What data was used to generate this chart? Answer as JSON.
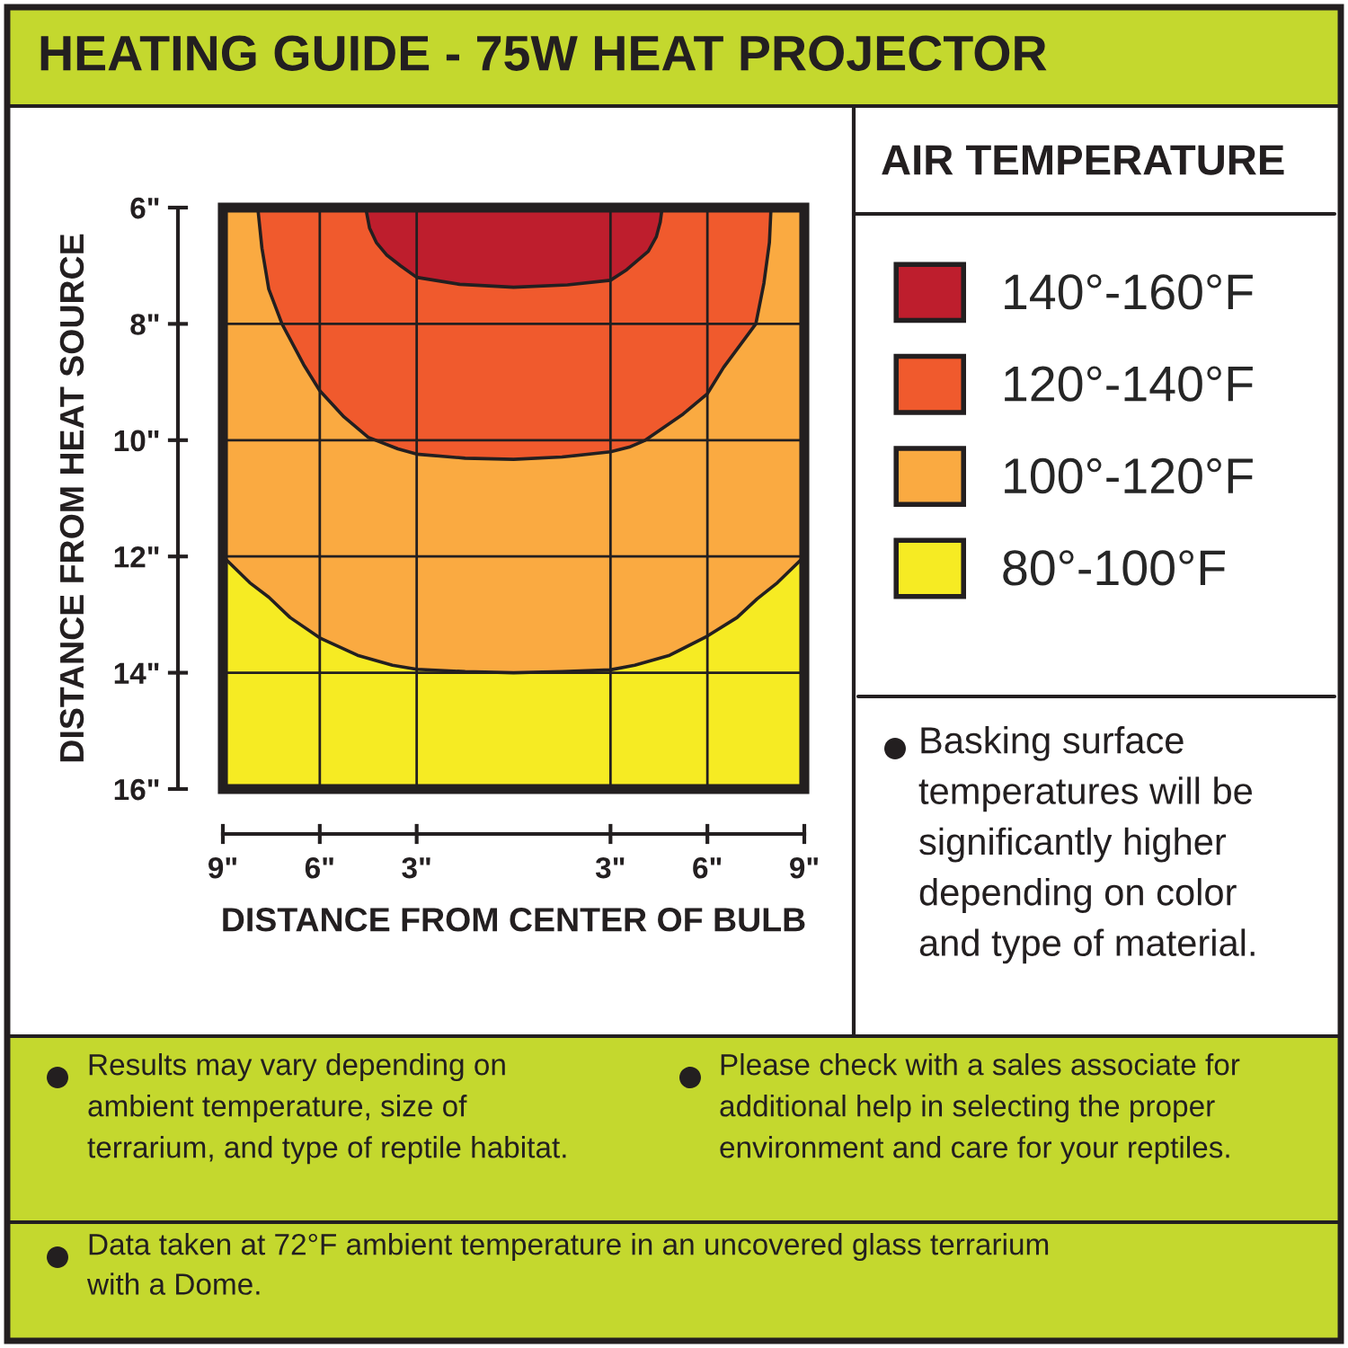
{
  "chart_data": {
    "type": "area",
    "title": "HEATING GUIDE - 75W HEAT PROJECTOR",
    "xlabel": "DISTANCE FROM CENTER OF BULB",
    "ylabel": "DISTANCE FROM HEAT SOURCE",
    "legend_title": "AIR TEMPERATURE",
    "series": [
      {
        "name": "140°-160°F",
        "color": "#be1e2d",
        "x": [
          -4.58,
          -4.46,
          -4.25,
          -3.92,
          -3.5,
          -3,
          -1.67,
          0,
          1.67,
          3,
          3.5,
          4.17,
          4.42,
          4.54,
          4.6
        ],
        "values": [
          6.0,
          6.35,
          6.6,
          6.82,
          7.0,
          7.2,
          7.32,
          7.37,
          7.33,
          7.25,
          7.07,
          6.75,
          6.5,
          6.25,
          6.0
        ]
      },
      {
        "name": "120°-140°F",
        "color": "#f05a2d",
        "x": [
          -7.92,
          -7.79,
          -7.58,
          -7.17,
          -6.5,
          -6,
          -5.25,
          -4.5,
          -3.58,
          -3,
          -1.5,
          0,
          1.5,
          3,
          3.58,
          4.08,
          5.25,
          6,
          6.5,
          7.5,
          7.75,
          7.92,
          7.97
        ],
        "values": [
          6.0,
          6.7,
          7.4,
          8.0,
          8.7,
          9.15,
          9.6,
          9.95,
          10.15,
          10.24,
          10.31,
          10.33,
          10.29,
          10.2,
          10.12,
          10.0,
          9.55,
          9.2,
          8.75,
          8.0,
          7.3,
          6.6,
          6.0
        ]
      },
      {
        "name": "100°-120°F",
        "color": "#faaa41",
        "x": [
          -9,
          -8.17,
          -7.58,
          -6.92,
          -6,
          -4.83,
          -3.75,
          -3,
          -1.5,
          0,
          1.5,
          3,
          3.75,
          4.83,
          6,
          6.92,
          7.54,
          8.17,
          9
        ],
        "values": [
          12.0,
          12.45,
          12.7,
          13.05,
          13.4,
          13.7,
          13.87,
          13.94,
          13.98,
          14.0,
          13.98,
          13.95,
          13.87,
          13.7,
          13.37,
          13.05,
          12.73,
          12.45,
          12.0
        ]
      },
      {
        "name": "80°-100°F",
        "color": "#f6eb23",
        "x": [
          -9,
          9
        ],
        "values": [
          16,
          16
        ]
      }
    ],
    "xlim": [
      -9,
      9
    ],
    "xticks": [
      {
        "value": -9,
        "label": "9\""
      },
      {
        "value": -6,
        "label": "6\""
      },
      {
        "value": -3,
        "label": "3\""
      },
      {
        "value": 3,
        "label": "3\""
      },
      {
        "value": 6,
        "label": "6\""
      },
      {
        "value": 9,
        "label": "9\""
      }
    ],
    "ylim": [
      16,
      6
    ],
    "yticks": [
      {
        "value": 6,
        "label": "6\""
      },
      {
        "value": 8,
        "label": "8\""
      },
      {
        "value": 10,
        "label": "10\""
      },
      {
        "value": 12,
        "label": "12\""
      },
      {
        "value": 14,
        "label": "14\""
      },
      {
        "value": 16,
        "label": "16\""
      }
    ],
    "grid": true,
    "legend": "right",
    "annotations": [
      "Basking surface\ntemperatures will be\nsignificantly higher\ndepending on color\nand type of material.",
      "Results may vary depending on\nambient temperature, size of\nterrarium, and type of reptile habitat.",
      "Please check with a sales associate for\nadditional help in selecting the proper\nenvironment and care for your reptiles.",
      "Data taken at 72°F ambient temperature in an uncovered glass terrarium\nwith a Dome."
    ]
  }
}
